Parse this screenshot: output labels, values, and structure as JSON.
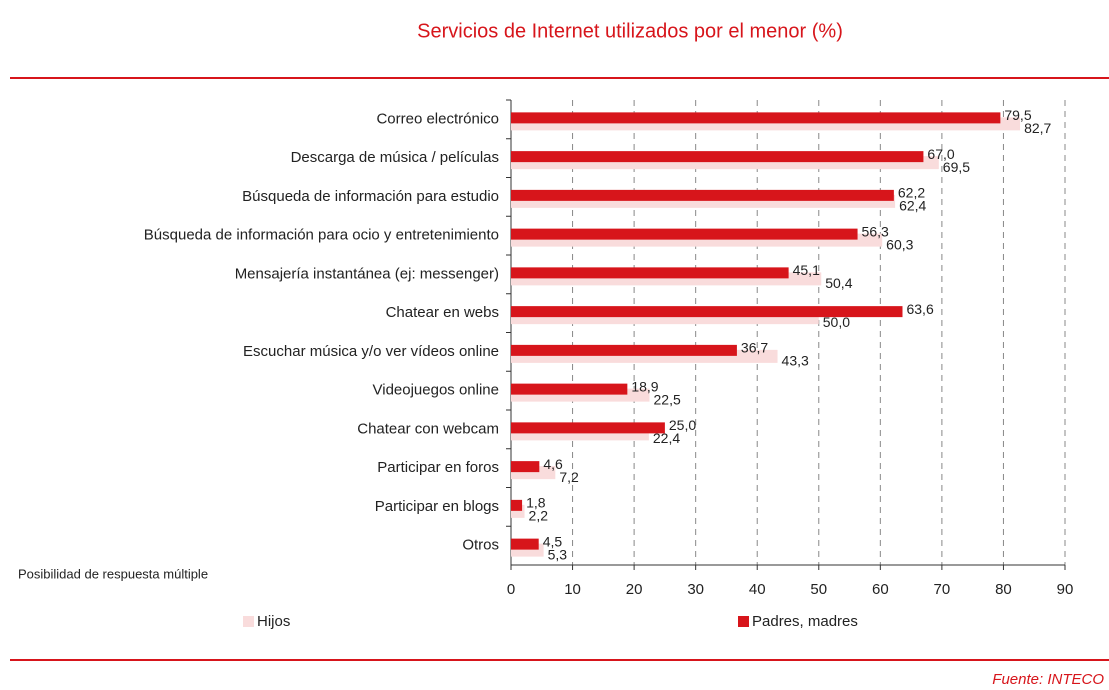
{
  "chart_data": {
    "type": "hbar",
    "title": "Servicios de Internet utilizados por el menor (%)",
    "note": "Posibilidad de respuesta múltiple",
    "source": "Fuente: INTECO",
    "categories": [
      "Correo electrónico",
      "Descarga de música / películas",
      "Búsqueda de información para estudio",
      "Búsqueda de información para ocio y entretenimiento",
      "Mensajería instantánea (ej: messenger)",
      "Chatear en webs",
      "Escuchar música y/o ver vídeos online",
      "Videojuegos online",
      "Chatear con webcam",
      "Participar en foros",
      "Participar en blogs",
      "Otros"
    ],
    "series": [
      {
        "name": "Hijos",
        "color": "#f9dcdc",
        "values": [
          82.7,
          69.5,
          62.4,
          60.3,
          50.4,
          50.0,
          43.3,
          22.5,
          22.4,
          7.2,
          2.2,
          5.3
        ],
        "value_labels": [
          "82,7",
          "69,5",
          "62,4",
          "60,3",
          "50,4",
          "50,0",
          "43,3",
          "22,5",
          "22,4",
          "7,2",
          "2,2",
          "5,3"
        ]
      },
      {
        "name": "Padres, madres",
        "color": "#d7151b",
        "values": [
          79.5,
          67.0,
          62.2,
          56.3,
          45.1,
          63.6,
          36.7,
          18.9,
          25.0,
          4.6,
          1.8,
          4.5
        ],
        "value_labels": [
          "79,5",
          "67,0",
          "62,2",
          "56,3",
          "45,1",
          "63,6",
          "36,7",
          "18,9",
          "25,0",
          "4,6",
          "1,8",
          "4,5"
        ]
      }
    ],
    "xlim": [
      0,
      90
    ],
    "xticks": [
      0,
      10,
      20,
      30,
      40,
      50,
      60,
      70,
      80,
      90
    ],
    "grid": true
  }
}
